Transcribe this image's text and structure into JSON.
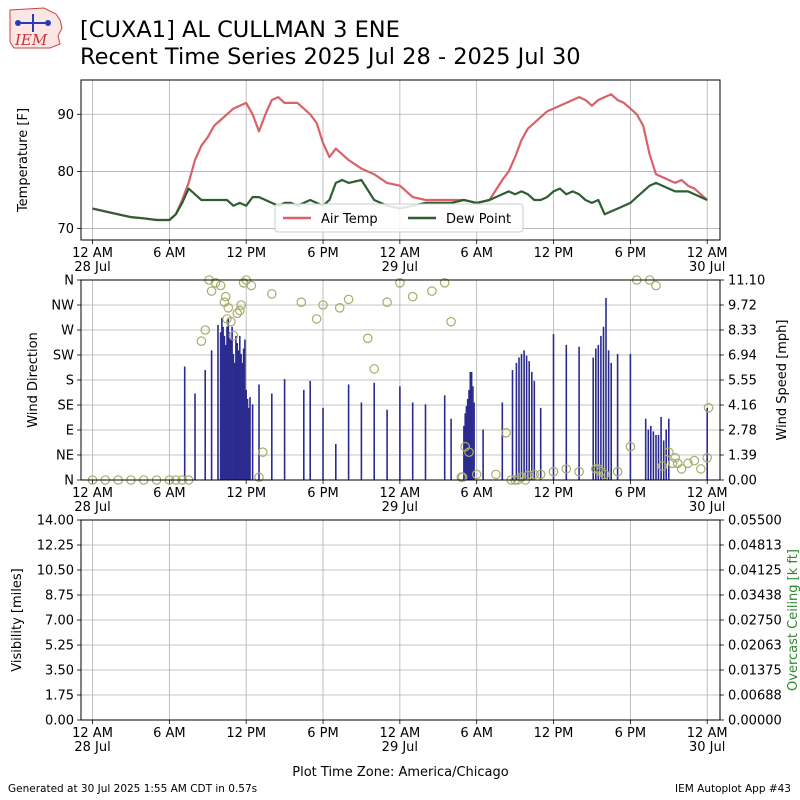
{
  "page": {
    "title_line1": "[CUXA1] AL CULLMAN 3 ENE",
    "title_line2": "Recent Time Series 2025 Jul 28 - 2025 Jul 30",
    "footer_left": "Generated at 30 Jul 2025 1:55 AM CDT in 0.57s",
    "footer_right": "IEM Autoplot App #43",
    "logo_text": "IEM",
    "xlabel": "Plot Time Zone: America/Chicago"
  },
  "colors": {
    "air_temp": "#d9626a",
    "dew_point": "#2e5e32",
    "wind_speed_bar": "#2b2b8f",
    "wind_dir_marker": "#a8ad6a",
    "ceiling_axis": "#2e8b2e",
    "grid": "#b0b0b0"
  },
  "chart_data": [
    {
      "type": "line",
      "ylabel": "Temperature [F]",
      "ylim": [
        68,
        96
      ],
      "yticks": [
        "70",
        "80",
        "90"
      ],
      "x_ticks": [
        {
          "hour": 0,
          "label": "12 AM",
          "sub": "28 Jul"
        },
        {
          "hour": 6,
          "label": "6 AM",
          "sub": ""
        },
        {
          "hour": 12,
          "label": "12 PM",
          "sub": ""
        },
        {
          "hour": 18,
          "label": "6 PM",
          "sub": ""
        },
        {
          "hour": 24,
          "label": "12 AM",
          "sub": "29 Jul"
        },
        {
          "hour": 30,
          "label": "6 AM",
          "sub": ""
        },
        {
          "hour": 36,
          "label": "12 PM",
          "sub": ""
        },
        {
          "hour": 42,
          "label": "6 PM",
          "sub": ""
        },
        {
          "hour": 48,
          "label": "12 AM",
          "sub": "30 Jul"
        }
      ],
      "xlim_hours": [
        -0.9,
        49.0
      ],
      "grid": true,
      "legend_position": "bottom-center",
      "series": [
        {
          "name": "Air Temp",
          "color_key": "air_temp",
          "x": [
            0,
            1,
            2,
            3,
            4,
            5,
            6,
            6.5,
            7,
            7.5,
            8,
            8.5,
            9,
            9.5,
            10,
            10.5,
            11,
            11.5,
            12,
            12.5,
            13,
            13.5,
            14,
            14.5,
            15,
            15.5,
            16,
            16.5,
            17,
            17.5,
            18,
            18.5,
            19,
            19.5,
            20,
            21,
            22,
            23,
            24,
            25,
            26,
            27,
            28,
            29,
            30,
            31,
            32,
            32.5,
            33,
            33.5,
            34,
            34.5,
            35,
            35.5,
            36,
            36.5,
            37,
            37.5,
            38,
            38.5,
            39,
            39.5,
            40,
            40.5,
            41,
            41.5,
            42,
            42.5,
            43,
            43.5,
            44,
            44.5,
            45,
            45.5,
            46,
            46.5,
            47,
            47.5,
            48
          ],
          "y": [
            73.5,
            73.0,
            72.5,
            72.0,
            71.8,
            71.5,
            71.5,
            72.5,
            75.0,
            78.0,
            82.0,
            84.5,
            86.0,
            88.0,
            89.0,
            90.0,
            91.0,
            91.5,
            92.0,
            90.0,
            87.0,
            90.0,
            92.5,
            93.0,
            92.0,
            92.0,
            92.0,
            91.0,
            90.0,
            88.5,
            85.0,
            82.5,
            84.0,
            83.0,
            82.0,
            80.5,
            79.5,
            78.0,
            77.5,
            75.5,
            75.0,
            75.0,
            75.0,
            75.0,
            74.5,
            75.0,
            78.5,
            80.0,
            82.5,
            85.5,
            87.5,
            88.5,
            89.5,
            90.5,
            91.0,
            91.5,
            92.0,
            92.5,
            93.0,
            92.5,
            91.5,
            92.5,
            93.0,
            93.5,
            92.5,
            92.0,
            91.0,
            90.0,
            88.0,
            83.0,
            79.5,
            79.0,
            78.5,
            78.0,
            78.5,
            77.5,
            77.0,
            76.0,
            75.0
          ]
        },
        {
          "name": "Dew Point",
          "color_key": "dew_point",
          "x": [
            0,
            1,
            2,
            3,
            4,
            5,
            6,
            6.5,
            7,
            7.5,
            8,
            8.5,
            9,
            9.5,
            10,
            10.5,
            11,
            11.5,
            12,
            12.5,
            13,
            13.5,
            14,
            14.5,
            15,
            15.5,
            16,
            16.5,
            17,
            17.5,
            18,
            18.5,
            19,
            19.5,
            20,
            21,
            22,
            23,
            24,
            25,
            26,
            27,
            28,
            29,
            30,
            31,
            32,
            32.5,
            33,
            33.5,
            34,
            34.5,
            35,
            35.5,
            36,
            36.5,
            37,
            37.5,
            38,
            38.5,
            39,
            39.5,
            40,
            40.5,
            41,
            41.5,
            42,
            42.5,
            43,
            43.5,
            44,
            44.5,
            45,
            45.5,
            46,
            46.5,
            47,
            47.5,
            48
          ],
          "y": [
            73.5,
            73.0,
            72.5,
            72.0,
            71.8,
            71.5,
            71.5,
            72.5,
            74.5,
            77.0,
            76.0,
            75.0,
            75.0,
            75.0,
            75.0,
            75.0,
            74.0,
            74.5,
            74.0,
            75.5,
            75.5,
            75.0,
            74.5,
            74.0,
            74.5,
            74.5,
            74.0,
            74.5,
            75.0,
            74.5,
            74.0,
            75.0,
            78.0,
            78.5,
            78.0,
            78.5,
            75.0,
            74.0,
            73.5,
            74.0,
            74.5,
            74.5,
            74.5,
            75.0,
            74.5,
            75.0,
            76.0,
            76.5,
            76.0,
            76.5,
            76.0,
            75.0,
            75.0,
            75.5,
            76.5,
            77.0,
            76.0,
            76.5,
            76.0,
            75.0,
            74.5,
            75.0,
            72.5,
            73.0,
            73.5,
            74.0,
            74.5,
            75.5,
            76.5,
            77.5,
            78.0,
            77.5,
            77.0,
            76.5,
            76.5,
            76.5,
            76.0,
            75.5,
            75.0
          ]
        }
      ]
    },
    {
      "type": "bar",
      "ylabel": "Wind Direction",
      "ylabel_right": "Wind Speed [mph]",
      "yticks_left": [
        "N",
        "NE",
        "E",
        "SE",
        "S",
        "SW",
        "W",
        "NW",
        "N"
      ],
      "yticks_right": [
        "0.00",
        "1.39",
        "2.78",
        "4.16",
        "5.55",
        "6.94",
        "8.33",
        "9.72",
        "11.10"
      ],
      "ylim_left": [
        0,
        360
      ],
      "ylim_right": [
        0,
        11.1
      ],
      "grid": true,
      "series": [
        {
          "name": "",
          "kind": "wind-speed-bars",
          "color_key": "wind_speed_bar",
          "x": [
            7.2,
            8.0,
            8.8,
            9.3,
            9.8,
            10.0,
            10.1,
            10.2,
            10.3,
            10.4,
            10.5,
            10.6,
            10.7,
            10.8,
            10.9,
            11.0,
            11.1,
            11.2,
            11.3,
            11.4,
            11.5,
            11.6,
            11.7,
            11.8,
            11.9,
            12.0,
            12.1,
            12.2,
            12.3,
            12.5,
            13.0,
            14.0,
            15.0,
            16.5,
            17.0,
            18.0,
            19.0,
            20.0,
            21.0,
            22.0,
            23.0,
            24.0,
            25.0,
            26.0,
            27.5,
            28.0,
            29.0,
            29.1,
            29.2,
            29.3,
            29.4,
            29.5,
            29.6,
            29.7,
            29.8,
            30.5,
            32.0,
            32.8,
            33.1,
            33.3,
            33.5,
            33.7,
            33.9,
            34.1,
            34.3,
            34.5,
            35.0,
            36.0,
            37.0,
            38.0,
            39.1,
            39.3,
            39.5,
            39.7,
            39.9,
            40.1,
            40.3,
            40.5,
            41.0,
            42.0,
            43.2,
            43.4,
            43.6,
            43.8,
            44.0,
            44.2,
            44.4,
            44.6,
            44.8,
            45.0,
            48.0
          ],
          "y": [
            6.3,
            4.8,
            6.1,
            7.2,
            8.6,
            8.2,
            9.0,
            8.5,
            8.0,
            7.5,
            8.5,
            9.0,
            8.2,
            7.8,
            8.5,
            7.0,
            6.5,
            8.0,
            7.6,
            7.2,
            8.0,
            7.0,
            6.5,
            7.3,
            7.8,
            5.0,
            4.5,
            4.0,
            4.6,
            4.2,
            5.3,
            4.8,
            5.6,
            5.0,
            5.5,
            4.0,
            2.0,
            5.3,
            4.3,
            5.4,
            3.9,
            5.2,
            4.3,
            4.2,
            4.7,
            3.4,
            3.0,
            3.7,
            4.1,
            4.5,
            5.0,
            6.0,
            6.0,
            5.2,
            4.3,
            2.8,
            4.3,
            6.1,
            6.5,
            6.8,
            7.0,
            7.2,
            6.9,
            6.6,
            6.0,
            5.5,
            4.0,
            8.1,
            7.5,
            7.4,
            6.8,
            7.3,
            7.5,
            8.0,
            8.5,
            10.1,
            7.2,
            6.5,
            7.0,
            7.0,
            3.4,
            2.8,
            3.0,
            2.7,
            2.5,
            2.5,
            3.5,
            2.2,
            2.8,
            3.4,
            4.0
          ]
        },
        {
          "name": "",
          "kind": "wind-direction-markers",
          "color_key": "wind_dir_marker",
          "x": [
            0,
            1,
            2,
            3,
            4,
            5,
            6,
            6.5,
            7,
            7.5,
            8.5,
            8.8,
            9.1,
            9.3,
            9.6,
            10.0,
            10.3,
            10.4,
            10.5,
            10.6,
            10.8,
            11.0,
            11.3,
            11.5,
            11.6,
            11.8,
            12.0,
            12.4,
            13.0,
            13.3,
            14.0,
            16.3,
            17.5,
            18.0,
            19.3,
            20.0,
            21.5,
            22.0,
            23.0,
            24.0,
            25.0,
            26.5,
            27.5,
            28.0,
            28.8,
            28.9,
            29.1,
            29.4,
            30.0,
            31.5,
            32.3,
            32.7,
            33.0,
            33.2,
            33.5,
            33.8,
            34.0,
            34.5,
            35.0,
            36.0,
            37.0,
            38.0,
            39.3,
            39.5,
            39.7,
            40.0,
            41.0,
            42.0,
            42.5,
            43.5,
            44.0,
            44.5,
            45.0,
            45.3,
            45.5,
            45.7,
            46.0,
            46.5,
            47.0,
            47.5,
            48.0,
            48.1
          ],
          "y": [
            0,
            0,
            0,
            0,
            0,
            0,
            0,
            0,
            0,
            0,
            250,
            270,
            360,
            340,
            355,
            350,
            320,
            330,
            290,
            310,
            285,
            260,
            300,
            305,
            315,
            355,
            360,
            350,
            5,
            50,
            335,
            320,
            290,
            315,
            310,
            325,
            255,
            200,
            320,
            355,
            330,
            340,
            355,
            285,
            5,
            5,
            60,
            50,
            10,
            10,
            85,
            0,
            0,
            0,
            5,
            0,
            8,
            10,
            10,
            15,
            20,
            15,
            20,
            20,
            15,
            10,
            15,
            60,
            360,
            360,
            350,
            25,
            50,
            30,
            40,
            30,
            20,
            30,
            35,
            20,
            40,
            130
          ]
        }
      ]
    },
    {
      "type": "line",
      "ylabel": "Visibility [miles]",
      "ylabel_right": "Overcast Ceiling [k ft]",
      "yticks_left": [
        "0.00",
        "1.75",
        "3.50",
        "5.25",
        "7.00",
        "8.75",
        "10.50",
        "12.25",
        "14.00"
      ],
      "yticks_right": [
        "0.00000",
        "0.00688",
        "0.01375",
        "0.02063",
        "0.02750",
        "0.03438",
        "0.04125",
        "0.04813",
        "0.05500"
      ],
      "ylim_left": [
        0,
        14
      ],
      "ylim_right": [
        0,
        0.055
      ],
      "grid": true,
      "series": []
    }
  ]
}
